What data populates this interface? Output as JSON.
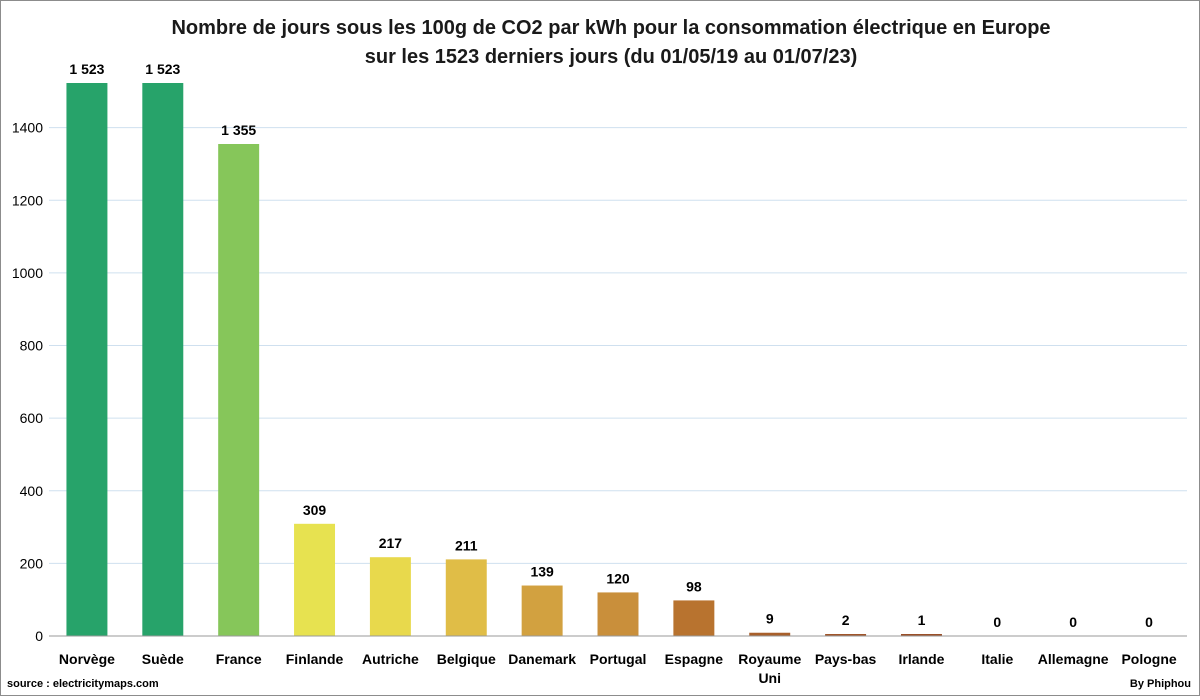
{
  "chart_data": {
    "type": "bar",
    "title": [
      "Nombre de jours sous les 100g de CO2 par kWh pour la consommation électrique en Europe",
      "sur les 1523 derniers jours (du 01/05/19 au 01/07/23)"
    ],
    "categories": [
      [
        "Norvège"
      ],
      [
        "Suède"
      ],
      [
        "France"
      ],
      [
        "Finlande"
      ],
      [
        "Autriche"
      ],
      [
        "Belgique"
      ],
      [
        "Danemark"
      ],
      [
        "Portugal"
      ],
      [
        "Espagne"
      ],
      [
        "Royaume",
        "Uni"
      ],
      [
        "Pays-bas"
      ],
      [
        "Irlande"
      ],
      [
        "Italie"
      ],
      [
        "Allemagne"
      ],
      [
        "Pologne"
      ]
    ],
    "values": [
      1523,
      1523,
      1355,
      309,
      217,
      211,
      139,
      120,
      98,
      9,
      2,
      1,
      0,
      0,
      0
    ],
    "value_labels": [
      "1 523",
      "1 523",
      "1 355",
      "309",
      "217",
      "211",
      "139",
      "120",
      "98",
      "9",
      "2",
      "1",
      "0",
      "0",
      "0"
    ],
    "colors": [
      "#27a36a",
      "#27a36a",
      "#86c65a",
      "#e7e250",
      "#e8d94c",
      "#e0bd47",
      "#d2a140",
      "#c98f3b",
      "#b8732f",
      "#a85f2a",
      "#a0552a",
      "#9a4f28",
      "#9a4f28",
      "#9a4f28",
      "#9a4f28"
    ],
    "ylim": [
      0,
      1523
    ],
    "yticks": [
      0,
      200,
      400,
      600,
      800,
      1000,
      1200,
      1400
    ],
    "grid": true,
    "legend": "none"
  },
  "footer": {
    "source": "source : electricitymaps.com",
    "author": "By Phiphou"
  }
}
